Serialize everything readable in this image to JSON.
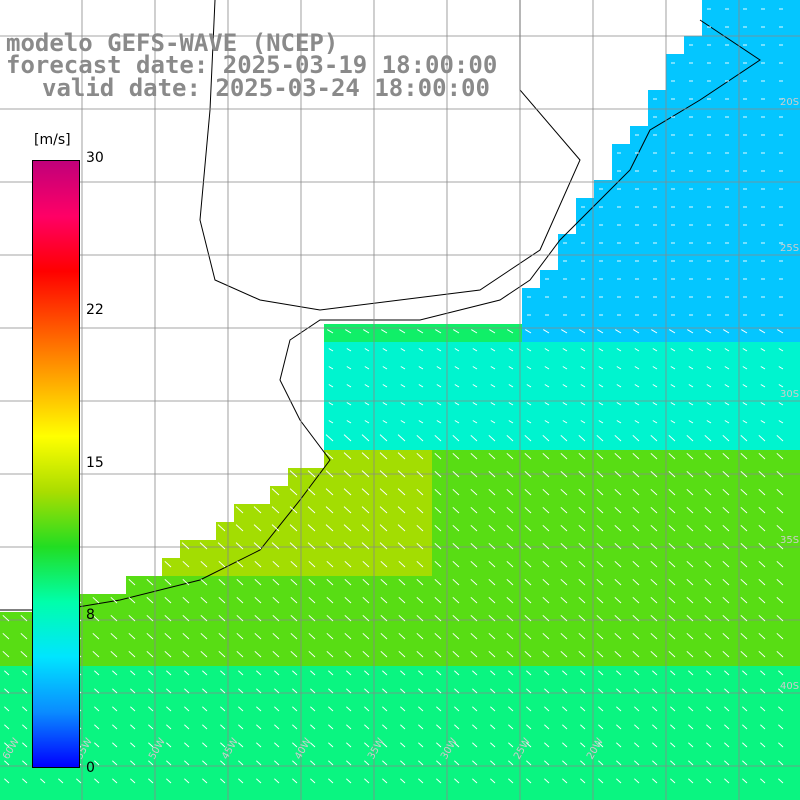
{
  "title": {
    "line1": "modelo GEFS-WAVE (NCEP)",
    "line2": "forecast date: 2025-03-19 18:00:00",
    "line3": "valid date: 2025-03-24 18:00:00"
  },
  "colorbar": {
    "unit": "[m/s]",
    "ticks": [
      "30",
      "22",
      "15",
      "8",
      "0"
    ],
    "tick_values": [
      30,
      22,
      15,
      8,
      0
    ],
    "colors": [
      "#0000ff",
      "#0a8cff",
      "#00e5ff",
      "#00ffaa",
      "#22dd22",
      "#aadd00",
      "#ffff00",
      "#ffaa00",
      "#ff5500",
      "#ff0000",
      "#ff0066",
      "#c0007a"
    ]
  },
  "map": {
    "lat_labels": [
      "20S",
      "25S",
      "30S",
      "35S",
      "40S"
    ],
    "lon_labels": [
      "60W",
      "55W",
      "50W",
      "45W",
      "40W",
      "35W",
      "30W",
      "25W",
      "20W"
    ],
    "line_color": "#000000",
    "grid_color": "#888888",
    "arrow_color": "#ffffff"
  }
}
